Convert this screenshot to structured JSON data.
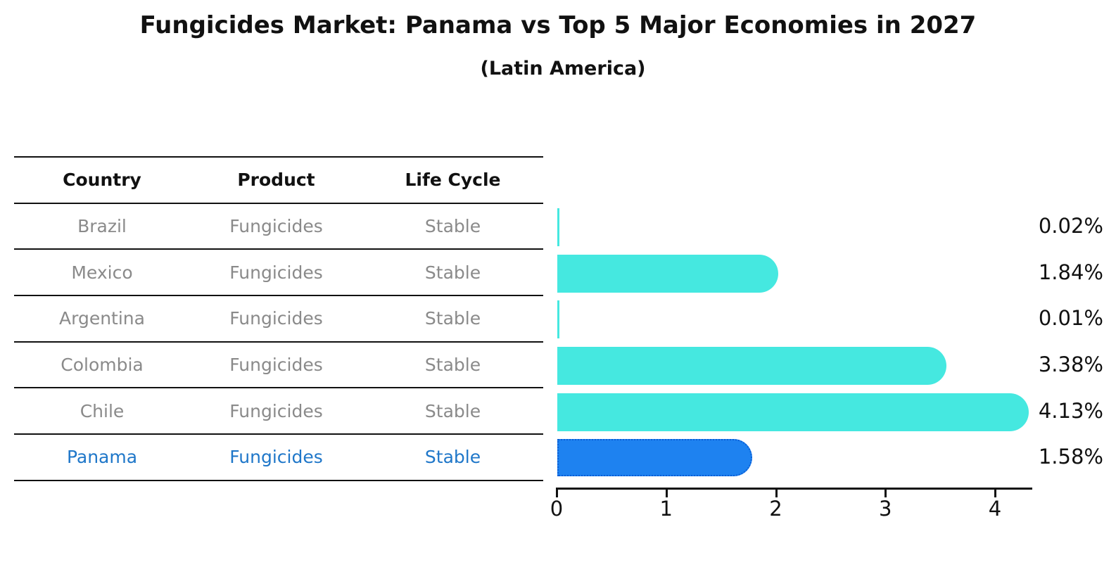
{
  "title": "Fungicides Market: Panama vs Top 5 Major Economies in 2027",
  "subtitle": "(Latin America)",
  "table": {
    "headers": [
      "Country",
      "Product",
      "Life Cycle"
    ],
    "rows": [
      {
        "country": "Brazil",
        "product": "Fungicides",
        "life_cycle": "Stable",
        "highlighted": false
      },
      {
        "country": "Mexico",
        "product": "Fungicides",
        "life_cycle": "Stable",
        "highlighted": false
      },
      {
        "country": "Argentina",
        "product": "Fungicides",
        "life_cycle": "Stable",
        "highlighted": false
      },
      {
        "country": "Colombia",
        "product": "Fungicides",
        "life_cycle": "Stable",
        "highlighted": false
      },
      {
        "country": "Chile",
        "product": "Fungicides",
        "life_cycle": "Stable",
        "highlighted": false
      },
      {
        "country": "Panama",
        "product": "Fungicides",
        "life_cycle": "Stable",
        "highlighted": true
      }
    ]
  },
  "chart_data": {
    "type": "bar",
    "orientation": "horizontal",
    "title": "Fungicides Market: Panama vs Top 5 Major Economies in 2027",
    "subtitle": "(Latin America)",
    "categories": [
      "Brazil",
      "Mexico",
      "Argentina",
      "Colombia",
      "Chile",
      "Panama"
    ],
    "values": [
      0.02,
      1.84,
      0.01,
      3.38,
      4.13,
      1.58
    ],
    "value_labels": [
      "0.02%",
      "1.84%",
      "0.01%",
      "3.38%",
      "4.13%",
      "1.58%"
    ],
    "xlabel": "",
    "ylabel": "",
    "xticks": [
      0,
      1,
      2,
      3,
      4
    ],
    "xlim": [
      0,
      4.33
    ],
    "grid": false,
    "legend": "none",
    "bar_color": "#45e8e0",
    "highlight_index": 5,
    "highlight_bar_color": "#1e82f0",
    "highlight_border_color": "#0a5ed6"
  },
  "colors": {
    "title_text": "#111111",
    "row_text": "#8a8a8a",
    "highlight_text": "#1f77c9",
    "table_line": "#111111",
    "axis": "#111111",
    "value_label_text": "#111111"
  }
}
